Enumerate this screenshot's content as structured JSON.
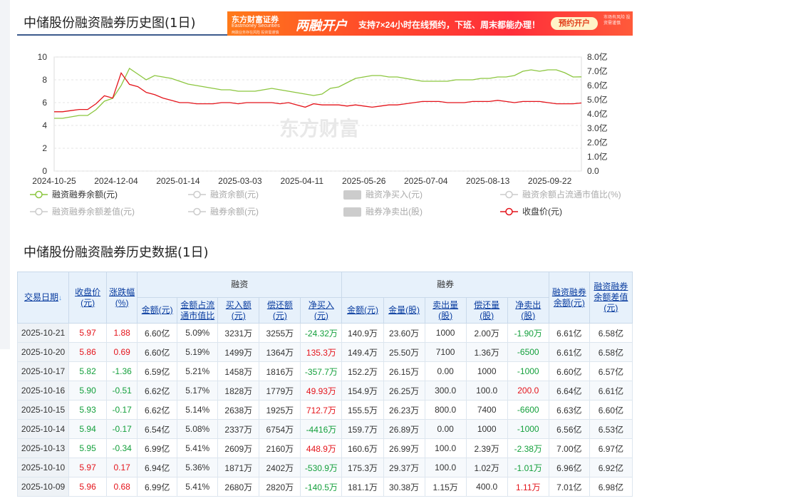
{
  "chart_section": {
    "title": "中储股份融资融券历史图(1日)",
    "watermark": "东方财富"
  },
  "ad": {
    "logo": "东方财富证券",
    "logo_sub": "Eastmoney Securities",
    "fineprint": "两融业务存在风险 投资需谨慎",
    "headline": "两融开户",
    "text": "支持7×24小时在线预约，下班、周末都能办理！",
    "button": "预约开户",
    "risk_note": "市场有风险 投资需谨慎"
  },
  "chart_data": {
    "type": "line",
    "x_ticks": [
      "2024-10-25",
      "2024-12-04",
      "2025-01-14",
      "2025-03-03",
      "2025-04-11",
      "2025-05-26",
      "2025-07-04",
      "2025-08-13",
      "2025-09-22"
    ],
    "y_left_ticks": [
      "10",
      "8",
      "6",
      "4",
      "2",
      "0"
    ],
    "y_left_range": [
      0,
      10
    ],
    "y_right_ticks": [
      "8.0亿",
      "7.0亿",
      "6.0亿",
      "5.0亿",
      "4.0亿",
      "3.0亿",
      "2.0亿",
      "1.0亿",
      "0.0"
    ],
    "y_right_range": [
      0,
      8
    ],
    "grid": true,
    "series": [
      {
        "name": "融资融券余额(元)",
        "axis": "right",
        "color": "#8cc63f",
        "values": [
          3.7,
          3.7,
          3.8,
          3.9,
          3.9,
          4.3,
          4.9,
          5.1,
          6.0,
          7.2,
          6.8,
          6.4,
          6.7,
          6.6,
          6.5,
          6.3,
          6.1,
          6.0,
          5.9,
          5.8,
          5.7,
          5.7,
          5.6,
          5.6,
          5.6,
          5.7,
          5.8,
          5.7,
          5.6,
          5.5,
          5.4,
          5.3,
          5.4,
          5.8,
          5.9,
          6.2,
          6.5,
          6.6,
          6.7,
          6.7,
          6.6,
          6.6,
          6.5,
          6.4,
          6.3,
          6.3,
          6.3,
          6.3,
          6.4,
          6.4,
          6.4,
          6.5,
          6.5,
          6.6,
          6.6,
          6.7,
          7.0,
          7.1,
          7.0,
          7.1,
          7.1,
          6.9,
          6.6,
          6.61
        ]
      },
      {
        "name": "收盘价(元)",
        "axis": "left",
        "color": "#e4141b",
        "values": [
          5.2,
          5.2,
          5.3,
          5.4,
          5.4,
          5.9,
          6.6,
          6.4,
          8.6,
          7.6,
          7.4,
          6.9,
          6.7,
          6.4,
          6.2,
          6.0,
          6.0,
          5.9,
          5.9,
          5.9,
          6.0,
          6.0,
          5.9,
          6.0,
          6.0,
          6.0,
          6.0,
          5.9,
          6.0,
          5.8,
          5.6,
          5.9,
          5.8,
          5.8,
          5.8,
          5.7,
          5.8,
          5.7,
          5.6,
          5.7,
          5.8,
          5.8,
          5.9,
          6.0,
          6.1,
          6.1,
          6.1,
          6.0,
          6.0,
          6.0,
          6.1,
          6.1,
          6.1,
          6.2,
          6.1,
          6.0,
          6.1,
          6.1,
          6.1,
          6.0,
          5.9,
          5.9,
          5.9,
          5.97
        ]
      }
    ]
  },
  "legend": [
    {
      "label": "融资融券余额(元)",
      "color": "#8cc63f",
      "style": "line",
      "active": true
    },
    {
      "label": "融资余额(元)",
      "color": "#cccccc",
      "style": "line",
      "active": false
    },
    {
      "label": "融资净买入(元)",
      "color": "#cccccc",
      "style": "box",
      "active": false
    },
    {
      "label": "融资余额占流通市值比(%)",
      "color": "#cccccc",
      "style": "line",
      "active": false
    },
    {
      "label": "融资融券余额差值(元)",
      "color": "#cccccc",
      "style": "line",
      "active": false
    },
    {
      "label": "融券余额(元)",
      "color": "#cccccc",
      "style": "line",
      "active": false
    },
    {
      "label": "融券净卖出(股)",
      "color": "#cccccc",
      "style": "box",
      "active": false
    },
    {
      "label": "收盘价(元)",
      "color": "#e4141b",
      "style": "line",
      "active": true
    }
  ],
  "table_section": {
    "title": "中储股份融资融券历史数据(1日)"
  },
  "table": {
    "headers": {
      "date": "交易日期",
      "sort_icon": "↓",
      "close": "收盘价(元)",
      "change": "涨跌幅(%)",
      "rz_group": "融资",
      "rq_group": "融券",
      "rz_amount": "金额(元)",
      "rz_ratio": "金额占流通市值比",
      "rz_buy": "买入额(元)",
      "rz_repay": "偿还额(元)",
      "rz_net": "净买入(元)",
      "rq_amount": "金额(元)",
      "rq_vol": "金量(股)",
      "rq_sell": "卖出量(股)",
      "rq_repay": "偿还量(股)",
      "rq_net": "净卖出(股)",
      "total": "融资融券余额(元)",
      "diff": "融资融券余额差值(元)"
    },
    "rows": [
      {
        "date": "2025-10-21",
        "close": "5.97",
        "change": "1.88",
        "rz_amount": "6.60亿",
        "rz_ratio": "5.09%",
        "rz_buy": "3231万",
        "rz_repay": "3255万",
        "rz_net": "-24.32万",
        "rq_amount": "140.9万",
        "rq_vol": "23.60万",
        "rq_sell": "1000",
        "rq_repay": "2.00万",
        "rq_net": "-1.90万",
        "total": "6.61亿",
        "diff": "6.58亿",
        "c": "red",
        "n": "green",
        "q": "green"
      },
      {
        "date": "2025-10-20",
        "close": "5.86",
        "change": "0.69",
        "rz_amount": "6.60亿",
        "rz_ratio": "5.19%",
        "rz_buy": "1499万",
        "rz_repay": "1364万",
        "rz_net": "135.3万",
        "rq_amount": "149.4万",
        "rq_vol": "25.50万",
        "rq_sell": "7100",
        "rq_repay": "1.36万",
        "rq_net": "-6500",
        "total": "6.61亿",
        "diff": "6.58亿",
        "c": "red",
        "n": "red",
        "q": "green"
      },
      {
        "date": "2025-10-17",
        "close": "5.82",
        "change": "-1.36",
        "rz_amount": "6.59亿",
        "rz_ratio": "5.21%",
        "rz_buy": "1458万",
        "rz_repay": "1816万",
        "rz_net": "-357.7万",
        "rq_amount": "152.2万",
        "rq_vol": "26.15万",
        "rq_sell": "0.00",
        "rq_repay": "1000",
        "rq_net": "-1000",
        "total": "6.60亿",
        "diff": "6.57亿",
        "c": "green",
        "n": "green",
        "q": "green"
      },
      {
        "date": "2025-10-16",
        "close": "5.90",
        "change": "-0.51",
        "rz_amount": "6.62亿",
        "rz_ratio": "5.17%",
        "rz_buy": "1828万",
        "rz_repay": "1779万",
        "rz_net": "49.93万",
        "rq_amount": "154.9万",
        "rq_vol": "26.25万",
        "rq_sell": "300.0",
        "rq_repay": "100.0",
        "rq_net": "200.0",
        "total": "6.64亿",
        "diff": "6.61亿",
        "c": "green",
        "n": "red",
        "q": "red"
      },
      {
        "date": "2025-10-15",
        "close": "5.93",
        "change": "-0.17",
        "rz_amount": "6.62亿",
        "rz_ratio": "5.14%",
        "rz_buy": "2638万",
        "rz_repay": "1925万",
        "rz_net": "712.7万",
        "rq_amount": "155.5万",
        "rq_vol": "26.23万",
        "rq_sell": "800.0",
        "rq_repay": "7400",
        "rq_net": "-6600",
        "total": "6.63亿",
        "diff": "6.60亿",
        "c": "green",
        "n": "red",
        "q": "green"
      },
      {
        "date": "2025-10-14",
        "close": "5.94",
        "change": "-0.17",
        "rz_amount": "6.54亿",
        "rz_ratio": "5.08%",
        "rz_buy": "2337万",
        "rz_repay": "6754万",
        "rz_net": "-4416万",
        "rq_amount": "159.7万",
        "rq_vol": "26.89万",
        "rq_sell": "0.00",
        "rq_repay": "1000",
        "rq_net": "-1000",
        "total": "6.56亿",
        "diff": "6.53亿",
        "c": "green",
        "n": "green",
        "q": "green"
      },
      {
        "date": "2025-10-13",
        "close": "5.95",
        "change": "-0.34",
        "rz_amount": "6.99亿",
        "rz_ratio": "5.41%",
        "rz_buy": "2609万",
        "rz_repay": "2160万",
        "rz_net": "448.9万",
        "rq_amount": "160.6万",
        "rq_vol": "26.99万",
        "rq_sell": "100.0",
        "rq_repay": "2.39万",
        "rq_net": "-2.38万",
        "total": "7.00亿",
        "diff": "6.97亿",
        "c": "green",
        "n": "red",
        "q": "green"
      },
      {
        "date": "2025-10-10",
        "close": "5.97",
        "change": "0.17",
        "rz_amount": "6.94亿",
        "rz_ratio": "5.36%",
        "rz_buy": "1871万",
        "rz_repay": "2402万",
        "rz_net": "-530.9万",
        "rq_amount": "175.3万",
        "rq_vol": "29.37万",
        "rq_sell": "100.0",
        "rq_repay": "1.02万",
        "rq_net": "-1.01万",
        "total": "6.96亿",
        "diff": "6.92亿",
        "c": "red",
        "n": "green",
        "q": "green"
      },
      {
        "date": "2025-10-09",
        "close": "5.96",
        "change": "0.68",
        "rz_amount": "6.99亿",
        "rz_ratio": "5.41%",
        "rz_buy": "2680万",
        "rz_repay": "2820万",
        "rz_net": "-140.5万",
        "rq_amount": "181.1万",
        "rq_vol": "30.38万",
        "rq_sell": "1.15万",
        "rq_repay": "400.0",
        "rq_net": "1.11万",
        "total": "7.01亿",
        "diff": "6.98亿",
        "c": "red",
        "n": "green",
        "q": "red"
      }
    ]
  }
}
